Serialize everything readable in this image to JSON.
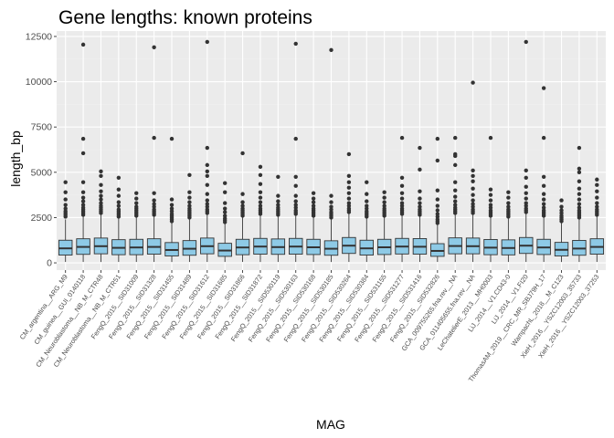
{
  "chart_data": {
    "type": "boxplot",
    "title": "Gene lengths: known proteins",
    "xlabel": "MAG",
    "ylabel": "length_bp",
    "ylim": [
      -400,
      12800
    ],
    "yticks": [
      0,
      2500,
      5000,
      7500,
      10000,
      12500
    ],
    "ytick_labels": [
      "0",
      "2500",
      "5000",
      "7500",
      "10000",
      "12500"
    ],
    "grid": true,
    "fill_color": "#8ecae6",
    "panel_color": "#ebebeb",
    "categories": [
      "CM_argentina__ARG_M9",
      "CM_guinea__GUI_0140118",
      "CM_Neuroblastoma__NB_M_CTR48",
      "CM_Neuroblastoma__NB_M_CTR51",
      "FengQ_2015__SID31009",
      "FengQ_2015__SID31328",
      "FengQ_2015__SID31455",
      "FengQ_2015__SID31489",
      "FengQ_2015__SID31612",
      "FengQ_2015__SID31685",
      "FengQ_2015__SID31866",
      "FengQ_2015__SID31872",
      "FengQ_2015__SID530119",
      "FengQ_2015__SID530163",
      "FengQ_2015__SID530168",
      "FengQ_2015__SID530185",
      "FengQ_2015__SID530264",
      "FengQ_2015__SID530384",
      "FengQ_2015__SID531155",
      "FengQ_2015__SID531277",
      "FengQ_2015__SID531416",
      "FengQ_2015__SID532826",
      "GCA_009755265.fna.rev__NA",
      "GCA_011405655.fna.rev__NA",
      "LeChatelierE_2013__MH0003",
      "LiJ_2014__V1.CD43-0",
      "LiJ_2014__V1.FI20",
      "ThomasAM_2019__CRC_MR_SBJ79H_17",
      "WampachL_2018__M_C123",
      "XieH_2016__YSZC12003_35733",
      "XieH_2016__YSZC12003_37253"
    ],
    "boxes": [
      {
        "q1": 430,
        "median": 800,
        "q3": 1250,
        "whisker_low": 50,
        "whisker_high": 2400,
        "outliers": [
          2550,
          2650,
          2750,
          2850,
          3000,
          3200,
          3500,
          3900,
          4450
        ]
      },
      {
        "q1": 470,
        "median": 880,
        "q3": 1330,
        "whisker_low": 50,
        "whisker_high": 2550,
        "outliers": [
          2650,
          2750,
          2850,
          2950,
          3050,
          3200,
          3400,
          3600,
          3900,
          4450,
          6050,
          6850,
          12050
        ]
      },
      {
        "q1": 500,
        "median": 920,
        "q3": 1370,
        "whisker_low": 50,
        "whisker_high": 2650,
        "outliers": [
          2750,
          2850,
          2950,
          3050,
          3150,
          3300,
          3500,
          3700,
          3950,
          4300,
          4800,
          5050
        ]
      },
      {
        "q1": 450,
        "median": 830,
        "q3": 1280,
        "whisker_low": 50,
        "whisker_high": 2450,
        "outliers": [
          2550,
          2650,
          2750,
          2850,
          2950,
          3150,
          3350,
          3700,
          4050,
          4700
        ]
      },
      {
        "q1": 450,
        "median": 850,
        "q3": 1300,
        "whisker_low": 50,
        "whisker_high": 2500,
        "outliers": [
          2600,
          2700,
          2800,
          2900,
          3000,
          3100,
          3300,
          3550,
          3850
        ]
      },
      {
        "q1": 480,
        "median": 880,
        "q3": 1330,
        "whisker_low": 50,
        "whisker_high": 2550,
        "outliers": [
          2650,
          2750,
          2850,
          2950,
          3100,
          3250,
          3450,
          3850,
          6900,
          11900
        ]
      },
      {
        "q1": 380,
        "median": 710,
        "q3": 1120,
        "whisker_low": 50,
        "whisker_high": 2200,
        "outliers": [
          2300,
          2400,
          2500,
          2600,
          2700,
          2850,
          3000,
          3200,
          3500,
          6850
        ]
      },
      {
        "q1": 420,
        "median": 780,
        "q3": 1230,
        "whisker_low": 50,
        "whisker_high": 2400,
        "outliers": [
          2500,
          2600,
          2700,
          2800,
          2900,
          3000,
          3150,
          3350,
          3600,
          3900,
          4850
        ]
      },
      {
        "q1": 500,
        "median": 920,
        "q3": 1370,
        "whisker_low": 50,
        "whisker_high": 2650,
        "outliers": [
          2750,
          2850,
          2950,
          3100,
          3250,
          3450,
          3800,
          4300,
          4800,
          5050,
          5400,
          6350,
          12200
        ]
      },
      {
        "q1": 360,
        "median": 680,
        "q3": 1080,
        "whisker_low": 50,
        "whisker_high": 2150,
        "outliers": [
          2250,
          2350,
          2450,
          2600,
          2800,
          3000,
          3300,
          3900,
          4400
        ]
      },
      {
        "q1": 450,
        "median": 850,
        "q3": 1300,
        "whisker_low": 50,
        "whisker_high": 2500,
        "outliers": [
          2600,
          2700,
          2800,
          2900,
          3000,
          3150,
          3350,
          3800,
          6050
        ]
      },
      {
        "q1": 480,
        "median": 900,
        "q3": 1350,
        "whisker_low": 50,
        "whisker_high": 2600,
        "outliers": [
          2700,
          2800,
          2900,
          3000,
          3150,
          3350,
          3600,
          3900,
          4350,
          4850,
          5300
        ]
      },
      {
        "q1": 470,
        "median": 870,
        "q3": 1320,
        "whisker_low": 50,
        "whisker_high": 2550,
        "outliers": [
          2650,
          2750,
          2850,
          2950,
          3050,
          3200,
          3400,
          3700,
          4750
        ]
      },
      {
        "q1": 480,
        "median": 900,
        "q3": 1350,
        "whisker_low": 50,
        "whisker_high": 2600,
        "outliers": [
          2700,
          2800,
          2900,
          3050,
          3200,
          3400,
          3700,
          4250,
          4750,
          6850,
          12100
        ]
      },
      {
        "q1": 460,
        "median": 860,
        "q3": 1300,
        "whisker_low": 50,
        "whisker_high": 2500,
        "outliers": [
          2600,
          2700,
          2800,
          2900,
          3000,
          3150,
          3350,
          3550,
          3850
        ]
      },
      {
        "q1": 420,
        "median": 780,
        "q3": 1220,
        "whisker_low": 50,
        "whisker_high": 2400,
        "outliers": [
          2500,
          2600,
          2700,
          2800,
          2950,
          3100,
          3350,
          3700,
          11750
        ]
      },
      {
        "q1": 520,
        "median": 950,
        "q3": 1400,
        "whisker_low": 50,
        "whisker_high": 2700,
        "outliers": [
          2800,
          2900,
          3000,
          3150,
          3300,
          3550,
          3850,
          4150,
          4450,
          4800,
          6000
        ]
      },
      {
        "q1": 430,
        "median": 800,
        "q3": 1250,
        "whisker_low": 50,
        "whisker_high": 2450,
        "outliers": [
          2550,
          2650,
          2750,
          2850,
          3000,
          3150,
          3400,
          3800,
          4450
        ]
      },
      {
        "q1": 460,
        "median": 860,
        "q3": 1300,
        "whisker_low": 50,
        "whisker_high": 2500,
        "outliers": [
          2600,
          2700,
          2800,
          2900,
          3000,
          3150,
          3350,
          3600,
          3900
        ]
      },
      {
        "q1": 490,
        "median": 900,
        "q3": 1350,
        "whisker_low": 50,
        "whisker_high": 2600,
        "outliers": [
          2700,
          2800,
          2900,
          3000,
          3150,
          3300,
          3550,
          3850,
          4250,
          4700,
          6900
        ]
      },
      {
        "q1": 480,
        "median": 890,
        "q3": 1340,
        "whisker_low": 50,
        "whisker_high": 2550,
        "outliers": [
          2650,
          2750,
          2850,
          2950,
          3100,
          3300,
          3550,
          3950,
          5150,
          6350
        ]
      },
      {
        "q1": 360,
        "median": 660,
        "q3": 1060,
        "whisker_low": 50,
        "whisker_high": 2100,
        "outliers": [
          2200,
          2300,
          2400,
          2550,
          2700,
          2900,
          3150,
          3500,
          4000,
          5650,
          6850
        ]
      },
      {
        "q1": 500,
        "median": 930,
        "q3": 1380,
        "whisker_low": 50,
        "whisker_high": 2650,
        "outliers": [
          2750,
          2850,
          2950,
          3050,
          3200,
          3400,
          3650,
          4000,
          4450,
          5400,
          5900,
          6000,
          6900
        ]
      },
      {
        "q1": 500,
        "median": 920,
        "q3": 1370,
        "whisker_low": 50,
        "whisker_high": 2650,
        "outliers": [
          2750,
          2850,
          2950,
          3100,
          3250,
          3450,
          3750,
          4100,
          4500,
          4800,
          5100,
          9950
        ]
      },
      {
        "q1": 450,
        "median": 840,
        "q3": 1290,
        "whisker_low": 50,
        "whisker_high": 2500,
        "outliers": [
          2600,
          2700,
          2800,
          2900,
          3050,
          3200,
          3450,
          3750,
          4050,
          6900
        ]
      },
      {
        "q1": 440,
        "median": 820,
        "q3": 1270,
        "whisker_low": 50,
        "whisker_high": 2450,
        "outliers": [
          2550,
          2650,
          2750,
          2850,
          2950,
          3100,
          3300,
          3600,
          3900
        ]
      },
      {
        "q1": 520,
        "median": 950,
        "q3": 1400,
        "whisker_low": 50,
        "whisker_high": 2700,
        "outliers": [
          2800,
          2900,
          3000,
          3150,
          3300,
          3550,
          3850,
          4200,
          4700,
          5100,
          12200
        ]
      },
      {
        "q1": 460,
        "median": 850,
        "q3": 1300,
        "whisker_low": 50,
        "whisker_high": 2500,
        "outliers": [
          2600,
          2700,
          2800,
          2900,
          3050,
          3250,
          3500,
          3800,
          4250,
          4750,
          6900,
          9650
        ]
      },
      {
        "q1": 380,
        "median": 720,
        "q3": 1130,
        "whisker_low": 50,
        "whisker_high": 2200,
        "outliers": [
          2300,
          2400,
          2500,
          2600,
          2750,
          2900,
          3100,
          3450
        ]
      },
      {
        "q1": 420,
        "median": 790,
        "q3": 1240,
        "whisker_low": 50,
        "whisker_high": 2400,
        "outliers": [
          2500,
          2600,
          2700,
          2800,
          2900,
          3050,
          3250,
          3500,
          3800,
          4100,
          4500,
          5000,
          5200,
          6350
        ]
      },
      {
        "q1": 480,
        "median": 880,
        "q3": 1330,
        "whisker_low": 50,
        "whisker_high": 2550,
        "outliers": [
          2650,
          2750,
          2850,
          2950,
          3100,
          3300,
          3600,
          3950,
          4300,
          4600
        ]
      }
    ]
  }
}
